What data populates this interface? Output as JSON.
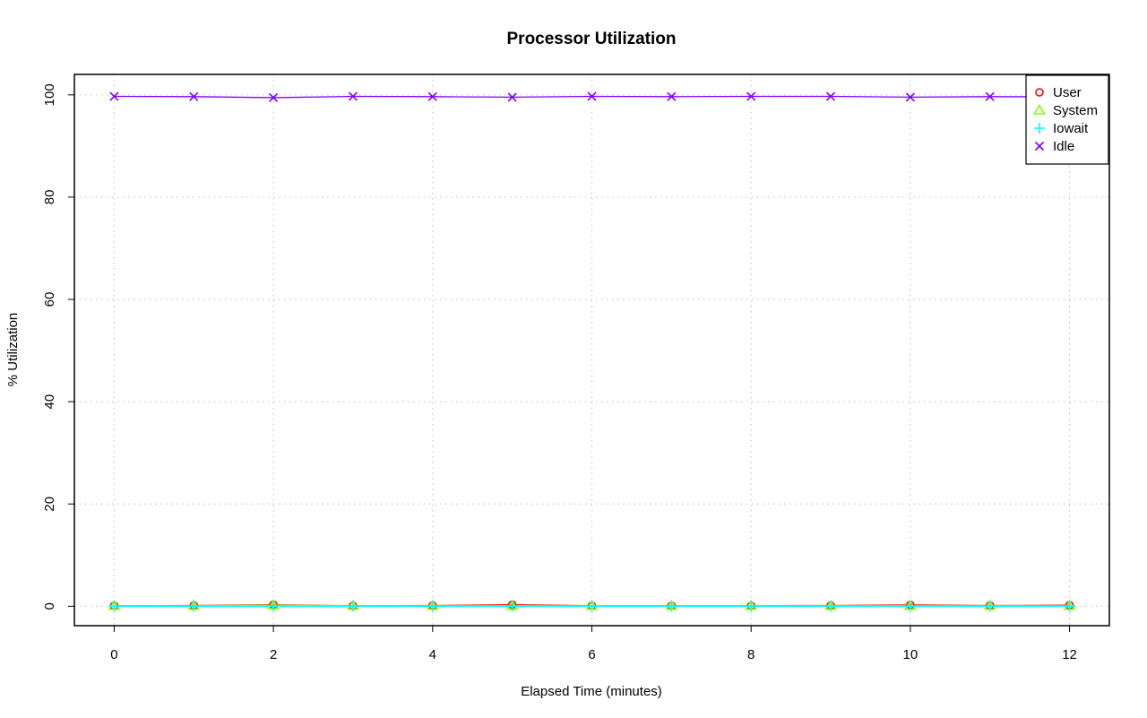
{
  "chart_data": {
    "type": "line",
    "title": "Processor Utilization",
    "xlabel": "Elapsed Time (minutes)",
    "ylabel": "% Utilization",
    "xlim": [
      -0.5,
      12.5
    ],
    "ylim": [
      -3.8,
      104
    ],
    "x_ticks": [
      0,
      2,
      4,
      6,
      8,
      10,
      12
    ],
    "y_ticks": [
      0,
      20,
      40,
      60,
      80,
      100
    ],
    "grid": true,
    "legend_position": "top-right",
    "x": [
      0,
      1,
      2,
      3,
      4,
      5,
      6,
      7,
      8,
      9,
      10,
      11,
      12
    ],
    "series": [
      {
        "name": "User",
        "color": "#ff0000",
        "marker": "circle",
        "values": [
          0.1,
          0.15,
          0.3,
          0.1,
          0.15,
          0.3,
          0.1,
          0.1,
          0.1,
          0.15,
          0.25,
          0.15,
          0.2
        ]
      },
      {
        "name": "System",
        "color": "#80ff00",
        "marker": "triangle",
        "values": [
          0.1,
          0.1,
          0.2,
          0.1,
          0.1,
          0.1,
          0.1,
          0.1,
          0.1,
          0.1,
          0.1,
          0.1,
          0.1
        ]
      },
      {
        "name": "Iowait",
        "color": "#00ffff",
        "marker": "plus",
        "values": [
          0.0,
          0.0,
          0.0,
          0.0,
          0.0,
          0.0,
          0.0,
          0.0,
          0.0,
          0.0,
          0.0,
          0.0,
          0.0
        ]
      },
      {
        "name": "Idle",
        "color": "#8000ff",
        "marker": "x",
        "values": [
          99.7,
          99.65,
          99.45,
          99.7,
          99.65,
          99.55,
          99.7,
          99.65,
          99.7,
          99.7,
          99.55,
          99.65,
          99.6
        ]
      }
    ]
  }
}
